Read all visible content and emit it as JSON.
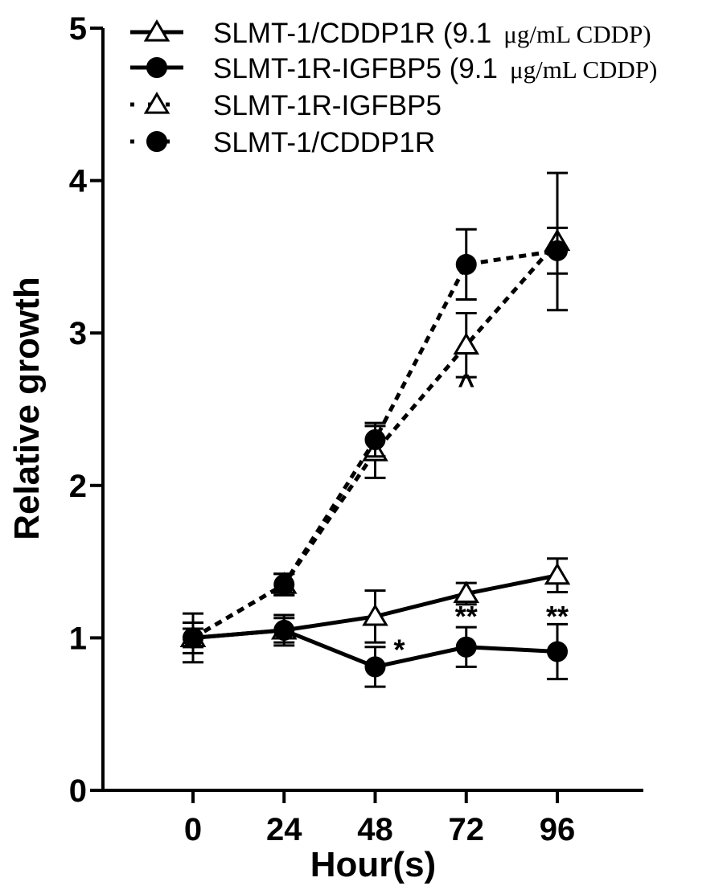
{
  "chart_data": {
    "type": "line",
    "xlabel": "Hour(s)",
    "ylabel": "Relative growth",
    "x": [
      0,
      24,
      48,
      72,
      96
    ],
    "x_ticks": [
      "0",
      "24",
      "48",
      "72",
      "96"
    ],
    "y_ticks": [
      "0",
      "1",
      "2",
      "3",
      "4",
      "5"
    ],
    "ylim": [
      0,
      5
    ],
    "legend_position": "top",
    "series": [
      {
        "name": "SLMT-1/CDDP1R (9.1",
        "name_unit": "μg/mL CDDP)",
        "marker": "open-triangle",
        "line": "solid",
        "y": [
          1.0,
          1.05,
          1.14,
          1.29,
          1.41
        ],
        "err": [
          0.1,
          0.08,
          0.17,
          0.07,
          0.11
        ]
      },
      {
        "name": "SLMT-1R-IGFBP5 (9.1",
        "name_unit": "μg/mL CDDP)",
        "marker": "filled-circle",
        "line": "solid",
        "y": [
          1.0,
          1.05,
          0.81,
          0.94,
          0.91
        ],
        "err": [
          0.16,
          0.1,
          0.13,
          0.13,
          0.18
        ]
      },
      {
        "name": "SLMT-1R-IGFBP5",
        "marker": "open-triangle",
        "line": "dotted",
        "y": [
          1.0,
          1.35,
          2.22,
          2.92,
          3.6
        ],
        "err": [
          0.06,
          0.07,
          0.17,
          0.21,
          0.45
        ]
      },
      {
        "name": "SLMT-1/CDDP1R",
        "marker": "filled-circle",
        "line": "dotted",
        "y": [
          1.0,
          1.35,
          2.3,
          3.45,
          3.54
        ],
        "err": [
          0.06,
          0.07,
          0.11,
          0.23,
          0.15
        ]
      }
    ],
    "annotations": [
      {
        "text": "*",
        "x": 48,
        "y": 0.92
      },
      {
        "text": "**",
        "x": 72,
        "y": 1.14
      },
      {
        "text": "**",
        "x": 96,
        "y": 1.14
      },
      {
        "text": "^",
        "x": 72,
        "y": 2.66
      }
    ]
  }
}
